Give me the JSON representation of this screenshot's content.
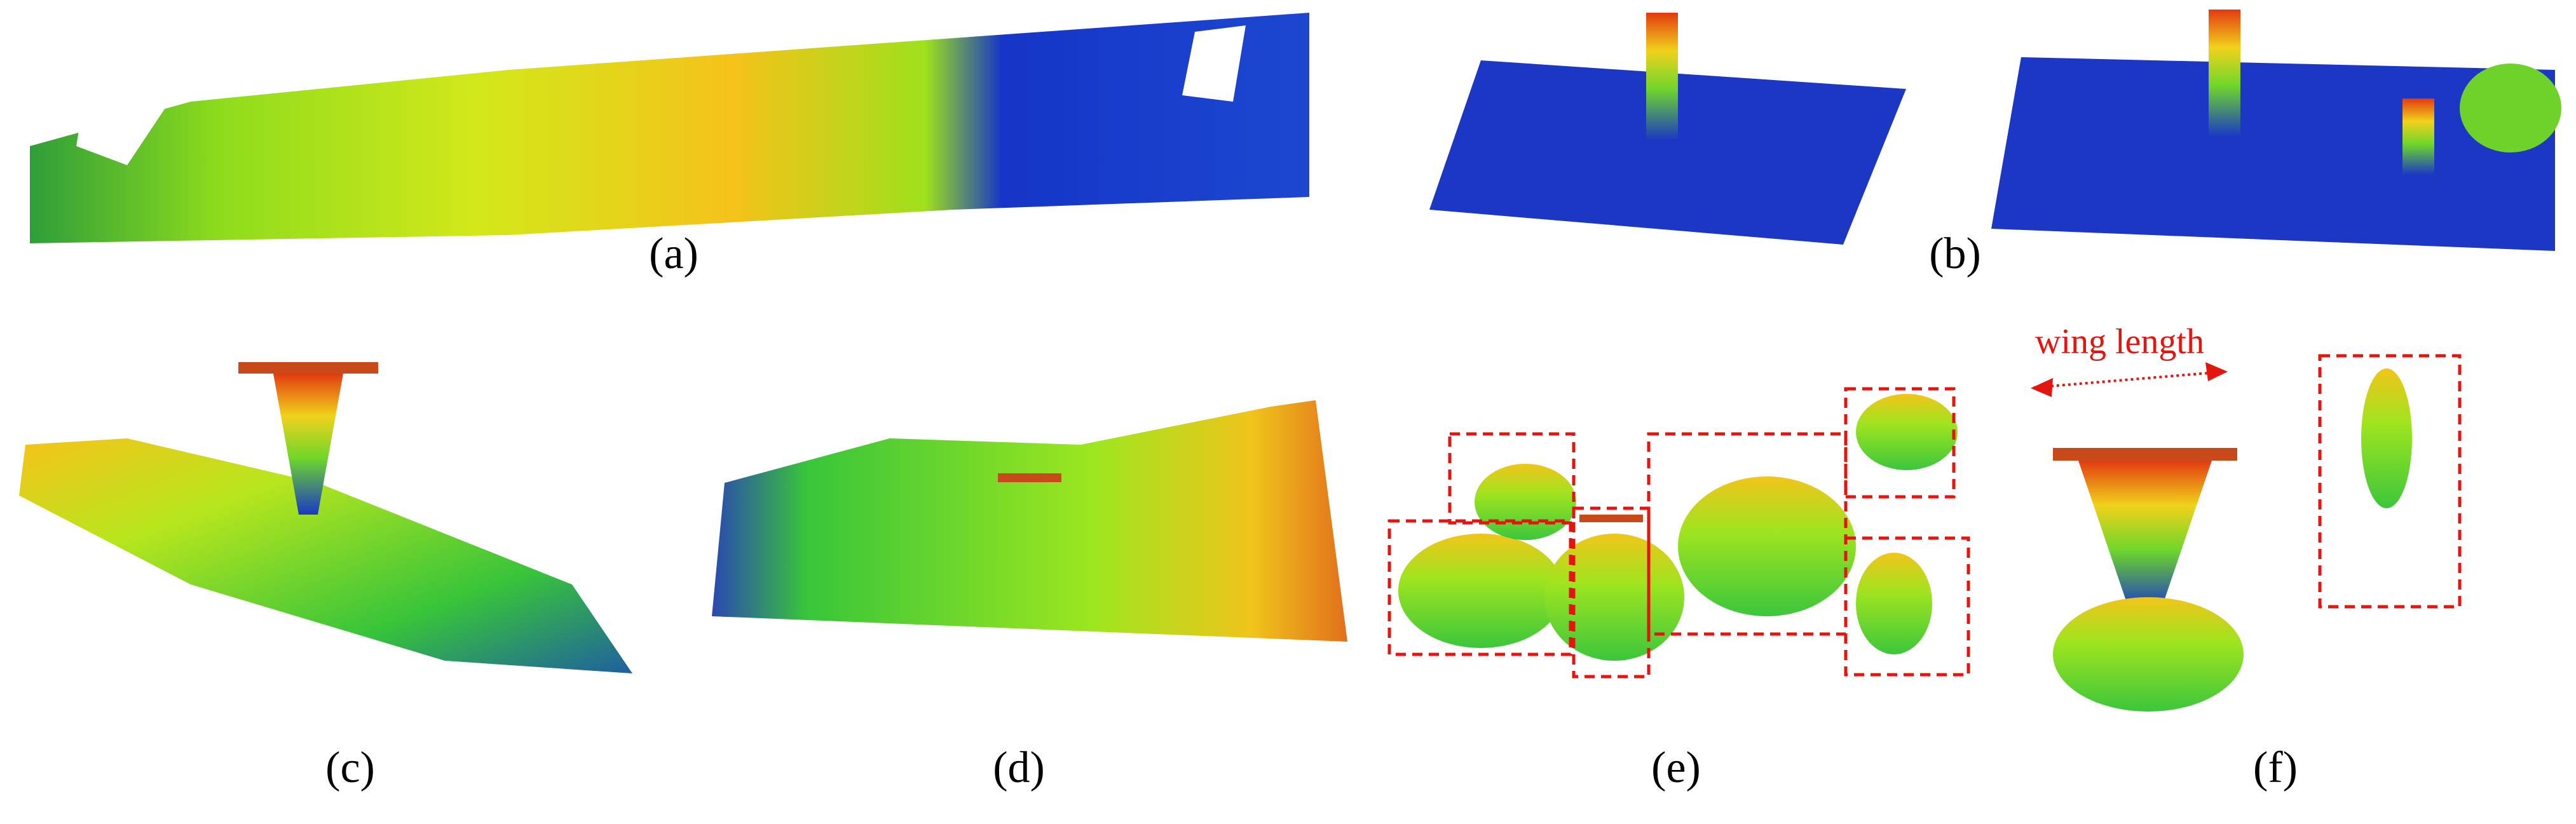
{
  "panels": [
    {
      "label": "(a)"
    },
    {
      "label": "(b)"
    },
    {
      "label": "(c)"
    },
    {
      "label": "(d)"
    },
    {
      "label": "(e)"
    },
    {
      "label": "(f)"
    }
  ],
  "annotation": "wing length"
}
